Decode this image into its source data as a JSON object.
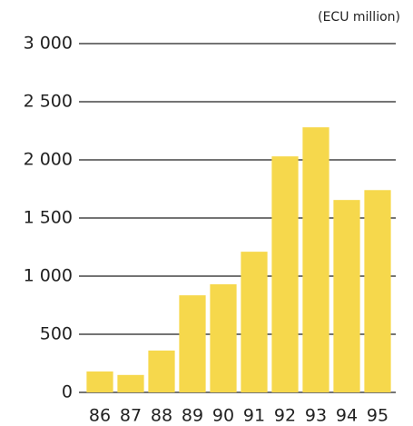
{
  "chart_data": {
    "type": "bar",
    "unit_label": "(ECU million)",
    "categories": [
      "86",
      "87",
      "88",
      "89",
      "90",
      "91",
      "92",
      "93",
      "94",
      "95"
    ],
    "values": [
      180,
      150,
      360,
      835,
      930,
      1210,
      2030,
      2280,
      1655,
      1740
    ],
    "color": "#f6d84c",
    "ylim": [
      0,
      3000
    ],
    "yticks": [
      0,
      500,
      {
        "value": 1000,
        "label": "1 000"
      },
      {
        "value": 1500,
        "label": "1 500"
      },
      {
        "value": 2000,
        "label": "2 000"
      },
      {
        "value": 2500,
        "label": "2 500"
      },
      {
        "value": 3000,
        "label": "3 000"
      }
    ],
    "grid": true
  }
}
